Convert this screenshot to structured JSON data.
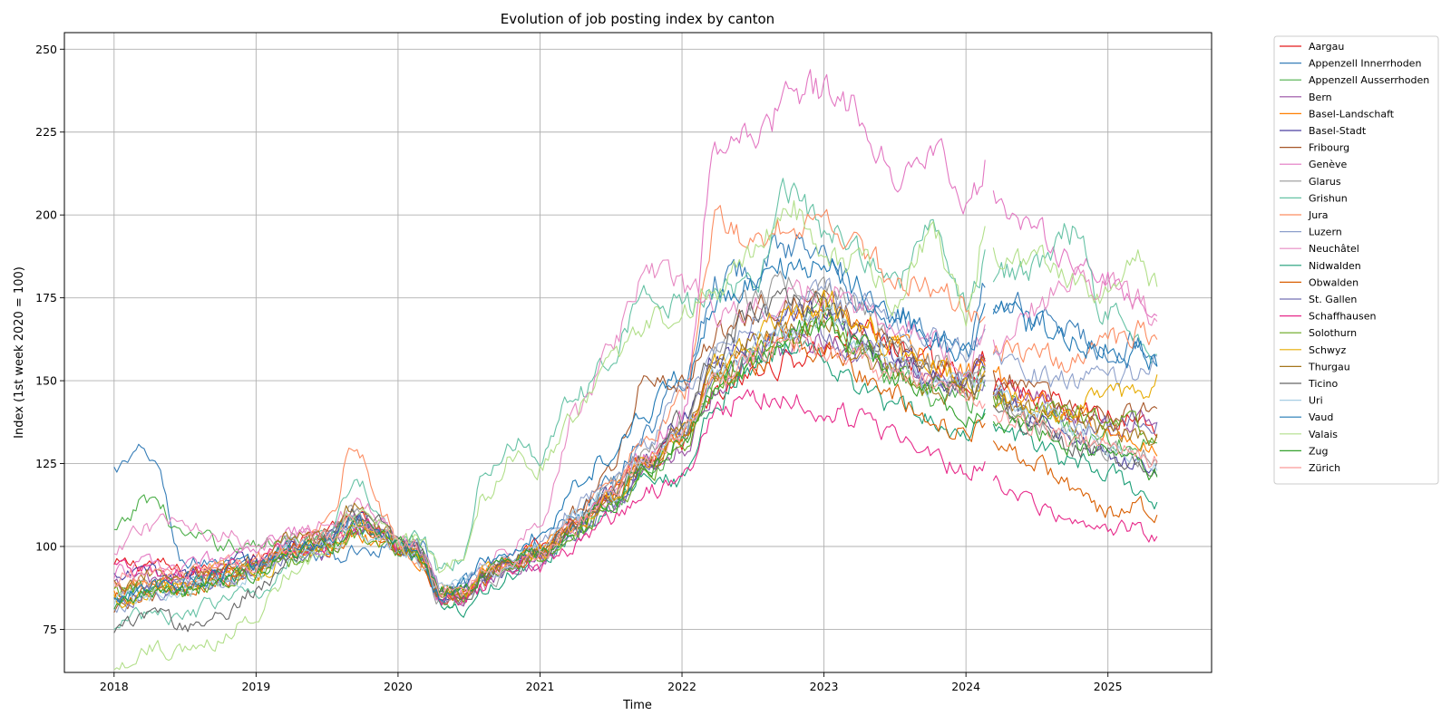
{
  "chart_data": {
    "type": "line",
    "title": "Evolution of job posting index by canton",
    "xlabel": "Time",
    "ylabel": "Index (1st week 2020 = 100)",
    "x_range": [
      2017.65,
      2025.73
    ],
    "ylim": [
      62,
      255
    ],
    "x_ticks": [
      2018,
      2019,
      2020,
      2021,
      2022,
      2023,
      2024,
      2025
    ],
    "y_ticks": [
      75,
      100,
      125,
      150,
      175,
      200,
      225,
      250
    ],
    "grid": true,
    "legend_position": "outside-right",
    "gap_in_data": [
      2024.15,
      2024.19
    ],
    "x_keys": [
      2018.0,
      2018.25,
      2018.5,
      2018.75,
      2019.0,
      2019.25,
      2019.5,
      2019.7,
      2019.9,
      2020.0,
      2020.15,
      2020.3,
      2020.45,
      2020.6,
      2020.8,
      2021.0,
      2021.25,
      2021.5,
      2021.75,
      2022.0,
      2022.25,
      2022.5,
      2022.75,
      2023.0,
      2023.25,
      2023.5,
      2023.75,
      2024.0,
      2024.15,
      2024.2,
      2024.5,
      2024.75,
      2025.0,
      2025.2,
      2025.35
    ],
    "series": [
      {
        "name": "Aargau",
        "color": "#e41a1c",
        "values": [
          94,
          95,
          92,
          94,
          96,
          100,
          104,
          108,
          104,
          100,
          98,
          85,
          86,
          92,
          98,
          100,
          108,
          116,
          124,
          132,
          145,
          152,
          156,
          160,
          165,
          160,
          155,
          150,
          156,
          148,
          145,
          142,
          140,
          138,
          136
        ]
      },
      {
        "name": "Appenzell Innerrhoden",
        "color": "#377eb8",
        "values": [
          123,
          128,
          95,
          96,
          92,
          100,
          96,
          98,
          100,
          100,
          102,
          86,
          88,
          92,
          96,
          100,
          110,
          120,
          135,
          150,
          180,
          185,
          190,
          193,
          175,
          170,
          165,
          158,
          180,
          175,
          170,
          165,
          160,
          162,
          158
        ]
      },
      {
        "name": "Appenzell Ausserrhoden",
        "color": "#4daf4a",
        "values": [
          104,
          115,
          103,
          101,
          100,
          104,
          102,
          108,
          103,
          100,
          102,
          85,
          84,
          90,
          95,
          98,
          104,
          112,
          122,
          132,
          150,
          158,
          164,
          170,
          160,
          150,
          145,
          143,
          150,
          145,
          140,
          135,
          132,
          130,
          134
        ]
      },
      {
        "name": "Bern",
        "color": "#984ea3",
        "values": [
          88,
          90,
          90,
          92,
          94,
          100,
          98,
          106,
          103,
          100,
          99,
          84,
          83,
          88,
          94,
          95,
          104,
          112,
          122,
          130,
          148,
          158,
          160,
          162,
          158,
          155,
          150,
          148,
          155,
          148,
          144,
          140,
          135,
          138,
          140
        ]
      },
      {
        "name": "Basel-Landschaft",
        "color": "#ff7f00",
        "values": [
          85,
          88,
          88,
          92,
          94,
          98,
          100,
          104,
          102,
          100,
          96,
          86,
          86,
          92,
          97,
          98,
          108,
          116,
          126,
          134,
          152,
          160,
          168,
          172,
          168,
          162,
          156,
          152,
          158,
          150,
          145,
          140,
          136,
          132,
          128
        ]
      },
      {
        "name": "Basel-Stadt",
        "color": "#4b3fa0",
        "values": [
          90,
          92,
          92,
          94,
          96,
          100,
          102,
          108,
          104,
          100,
          100,
          84,
          86,
          90,
          95,
          98,
          106,
          115,
          124,
          138,
          156,
          162,
          168,
          172,
          165,
          158,
          152,
          148,
          155,
          145,
          138,
          132,
          128,
          126,
          122
        ]
      },
      {
        "name": "Fribourg",
        "color": "#a65628",
        "values": [
          82,
          86,
          88,
          90,
          92,
          98,
          102,
          108,
          104,
          100,
          99,
          86,
          86,
          90,
          96,
          100,
          110,
          124,
          150,
          148,
          165,
          172,
          174,
          176,
          168,
          160,
          155,
          150,
          162,
          152,
          146,
          142,
          138,
          140,
          142
        ]
      },
      {
        "name": "Genève",
        "color": "#e377c2",
        "values": [
          92,
          95,
          93,
          96,
          98,
          104,
          102,
          110,
          106,
          100,
          98,
          84,
          85,
          90,
          96,
          98,
          106,
          116,
          128,
          140,
          220,
          222,
          234,
          238,
          232,
          215,
          222,
          200,
          215,
          205,
          195,
          188,
          180,
          175,
          170
        ]
      },
      {
        "name": "Glarus",
        "color": "#999999",
        "values": [
          86,
          88,
          88,
          90,
          94,
          100,
          104,
          110,
          106,
          100,
          98,
          84,
          84,
          88,
          94,
          98,
          108,
          118,
          128,
          136,
          160,
          175,
          180,
          178,
          172,
          162,
          156,
          150,
          152,
          145,
          138,
          132,
          130,
          128,
          126
        ]
      },
      {
        "name": "Grishun",
        "color": "#66c2a5",
        "values": [
          76,
          80,
          78,
          84,
          86,
          96,
          104,
          120,
          108,
          100,
          104,
          92,
          96,
          120,
          132,
          128,
          145,
          158,
          178,
          172,
          176,
          180,
          206,
          195,
          188,
          178,
          200,
          172,
          186,
          182,
          185,
          195,
          170,
          165,
          158
        ]
      },
      {
        "name": "Jura",
        "color": "#fc8d62",
        "values": [
          88,
          90,
          90,
          94,
          96,
          100,
          106,
          132,
          110,
          100,
          96,
          85,
          86,
          92,
          96,
          98,
          108,
          118,
          132,
          145,
          198,
          190,
          196,
          200,
          190,
          180,
          178,
          172,
          165,
          160,
          158,
          156,
          162,
          165,
          160
        ]
      },
      {
        "name": "Luzern",
        "color": "#8da0cb",
        "values": [
          82,
          86,
          88,
          90,
          94,
          100,
          104,
          108,
          104,
          100,
          100,
          88,
          86,
          92,
          98,
          100,
          112,
          120,
          130,
          145,
          160,
          168,
          174,
          176,
          172,
          168,
          164,
          158,
          162,
          155,
          152,
          150,
          150,
          152,
          155
        ]
      },
      {
        "name": "Neuchâtel",
        "color": "#e78ac3",
        "values": [
          98,
          106,
          108,
          104,
          100,
          104,
          106,
          112,
          108,
          100,
          100,
          86,
          88,
          94,
          100,
          108,
          140,
          160,
          182,
          178,
          170,
          172,
          174,
          178,
          172,
          168,
          162,
          155,
          165,
          160,
          172,
          182,
          178,
          175,
          165
        ]
      },
      {
        "name": "Nidwalden",
        "color": "#1b9e77",
        "values": [
          84,
          86,
          88,
          90,
          94,
          98,
          100,
          106,
          104,
          100,
          98,
          84,
          80,
          86,
          92,
          96,
          104,
          112,
          122,
          120,
          145,
          154,
          160,
          156,
          148,
          142,
          140,
          132,
          140,
          135,
          130,
          125,
          122,
          118,
          114
        ]
      },
      {
        "name": "Obwalden",
        "color": "#d95f02",
        "values": [
          84,
          86,
          86,
          90,
          92,
          98,
          100,
          104,
          102,
          100,
          98,
          86,
          86,
          90,
          96,
          98,
          106,
          114,
          124,
          134,
          150,
          156,
          160,
          158,
          152,
          146,
          140,
          134,
          135,
          130,
          125,
          118,
          110,
          112,
          110
        ]
      },
      {
        "name": "St. Gallen",
        "color": "#7570b3",
        "values": [
          84,
          86,
          86,
          90,
          92,
          98,
          100,
          106,
          104,
          100,
          98,
          86,
          86,
          90,
          96,
          96,
          104,
          112,
          124,
          134,
          152,
          158,
          164,
          166,
          160,
          155,
          150,
          146,
          150,
          144,
          140,
          138,
          136,
          138,
          138
        ]
      },
      {
        "name": "Schaffhausen",
        "color": "#e7298a",
        "values": [
          94,
          92,
          92,
          94,
          96,
          100,
          100,
          106,
          104,
          100,
          98,
          84,
          84,
          88,
          94,
          94,
          100,
          108,
          116,
          122,
          142,
          145,
          146,
          142,
          138,
          132,
          128,
          122,
          126,
          120,
          112,
          106,
          104,
          106,
          102
        ]
      },
      {
        "name": "Solothurn",
        "color": "#66a61e",
        "values": [
          86,
          88,
          86,
          90,
          92,
          96,
          100,
          104,
          102,
          100,
          98,
          86,
          86,
          90,
          96,
          96,
          104,
          112,
          122,
          130,
          148,
          156,
          164,
          168,
          160,
          152,
          148,
          145,
          150,
          145,
          142,
          140,
          138,
          136,
          132
        ]
      },
      {
        "name": "Schwyz",
        "color": "#e6ab02",
        "values": [
          84,
          86,
          88,
          92,
          92,
          98,
          100,
          106,
          104,
          100,
          98,
          86,
          86,
          92,
          96,
          98,
          106,
          114,
          126,
          136,
          155,
          162,
          170,
          174,
          168,
          160,
          155,
          150,
          152,
          146,
          142,
          140,
          148,
          146,
          150
        ]
      },
      {
        "name": "Thurgau",
        "color": "#a6761d",
        "values": [
          88,
          92,
          92,
          94,
          96,
          104,
          102,
          112,
          106,
          100,
          98,
          86,
          86,
          90,
          96,
          98,
          106,
          114,
          126,
          134,
          152,
          160,
          166,
          166,
          158,
          152,
          148,
          146,
          150,
          144,
          140,
          138,
          135,
          134,
          132
        ]
      },
      {
        "name": "Ticino",
        "color": "#666666",
        "values": [
          76,
          80,
          76,
          80,
          86,
          96,
          102,
          110,
          106,
          100,
          99,
          86,
          86,
          90,
          96,
          98,
          106,
          116,
          128,
          138,
          158,
          170,
          172,
          172,
          165,
          158,
          152,
          148,
          150,
          140,
          135,
          130,
          128,
          126,
          124
        ]
      },
      {
        "name": "Uri",
        "color": "#a6cee3",
        "values": [
          84,
          86,
          86,
          90,
          92,
          98,
          100,
          104,
          102,
          100,
          96,
          86,
          88,
          92,
          96,
          98,
          108,
          116,
          126,
          136,
          152,
          160,
          166,
          168,
          162,
          156,
          150,
          148,
          150,
          145,
          140,
          136,
          132,
          128,
          126
        ]
      },
      {
        "name": "Vaud",
        "color": "#1f78b4",
        "values": [
          86,
          88,
          90,
          92,
          94,
          100,
          102,
          108,
          104,
          100,
          100,
          86,
          88,
          94,
          100,
          104,
          118,
          128,
          140,
          152,
          172,
          180,
          184,
          186,
          178,
          170,
          162,
          156,
          174,
          170,
          166,
          162,
          160,
          158,
          156
        ]
      },
      {
        "name": "Valais",
        "color": "#b2df8a",
        "values": [
          64,
          70,
          68,
          72,
          80,
          92,
          100,
          110,
          106,
          100,
          102,
          92,
          98,
          115,
          128,
          124,
          140,
          156,
          168,
          172,
          178,
          188,
          204,
          188,
          185,
          175,
          195,
          170,
          198,
          190,
          185,
          180,
          178,
          186,
          180
        ]
      },
      {
        "name": "Zug",
        "color": "#33a02c",
        "values": [
          82,
          86,
          86,
          90,
          92,
          98,
          100,
          106,
          104,
          100,
          98,
          86,
          86,
          90,
          96,
          98,
          106,
          114,
          124,
          134,
          150,
          156,
          164,
          166,
          160,
          152,
          146,
          140,
          142,
          138,
          134,
          130,
          128,
          125,
          122
        ]
      },
      {
        "name": "Zürich",
        "color": "#fb9a99",
        "values": [
          90,
          92,
          92,
          94,
          96,
          100,
          102,
          108,
          104,
          100,
          100,
          86,
          86,
          92,
          96,
          98,
          106,
          116,
          126,
          134,
          150,
          156,
          160,
          160,
          156,
          152,
          148,
          144,
          145,
          140,
          136,
          132,
          130,
          128,
          126
        ]
      }
    ]
  }
}
